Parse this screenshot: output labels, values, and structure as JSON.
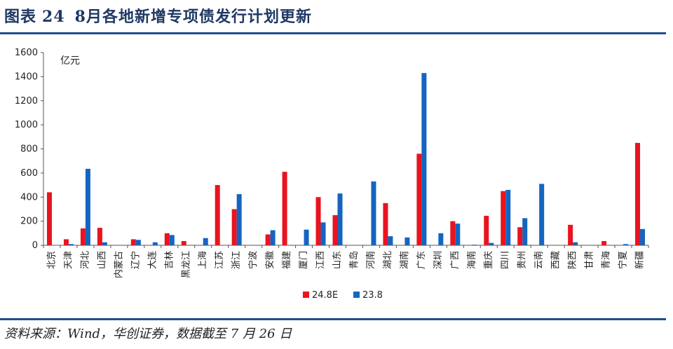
{
  "figure": {
    "label": "图表",
    "number": "24",
    "title": "8月各地新增专项债发行计划更新"
  },
  "source_note": "资料来源：Wind，华创证券，数据截至 7 月 26 日",
  "colors": {
    "accent": "#1f4e8c",
    "series_a": "#e8141f",
    "series_b": "#1565c0"
  },
  "chart_data": {
    "type": "bar",
    "title": "8月各地新增专项债发行计划更新",
    "ylabel": "亿元",
    "ylim": [
      0,
      1600
    ],
    "yticks": [
      0,
      200,
      400,
      600,
      800,
      1000,
      1200,
      1400,
      1600
    ],
    "grid": false,
    "legend_position": "bottom-center",
    "categories": [
      "北京",
      "天津",
      "河北",
      "山西",
      "内蒙古",
      "辽宁",
      "大连",
      "吉林",
      "黑龙江",
      "上海",
      "江苏",
      "浙江",
      "宁波",
      "安徽",
      "福建",
      "厦门",
      "江西",
      "山东",
      "青岛",
      "河南",
      "湖北",
      "湖南",
      "广东",
      "深圳",
      "广西",
      "海南",
      "重庆",
      "四川",
      "贵州",
      "云南",
      "西藏",
      "陕西",
      "甘肃",
      "青海",
      "宁夏",
      "新疆"
    ],
    "series": [
      {
        "name": "24.8E",
        "values": [
          440,
          50,
          140,
          145,
          0,
          50,
          0,
          100,
          35,
          0,
          500,
          300,
          0,
          90,
          610,
          0,
          400,
          250,
          0,
          0,
          350,
          0,
          760,
          0,
          200,
          0,
          245,
          450,
          150,
          0,
          0,
          170,
          0,
          35,
          0,
          850
        ]
      },
      {
        "name": "23.8",
        "values": [
          0,
          10,
          635,
          25,
          0,
          45,
          25,
          85,
          0,
          60,
          0,
          425,
          0,
          125,
          0,
          130,
          190,
          430,
          0,
          530,
          75,
          65,
          1430,
          100,
          180,
          5,
          20,
          460,
          225,
          510,
          0,
          25,
          0,
          0,
          10,
          135
        ]
      }
    ]
  }
}
